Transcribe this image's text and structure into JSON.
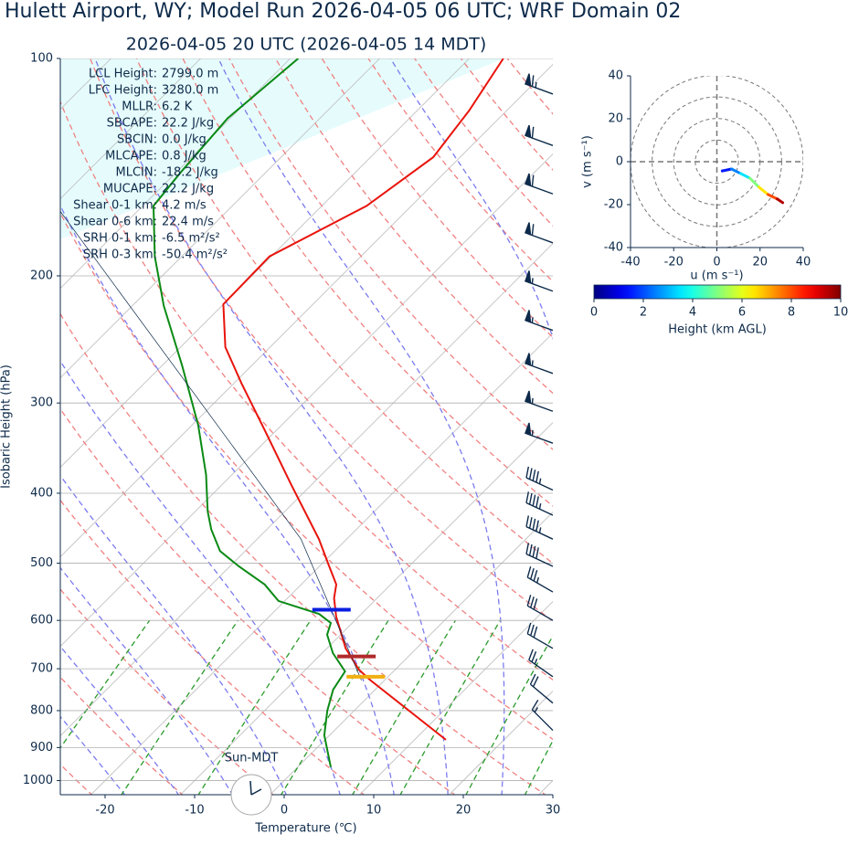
{
  "chart_data": [
    {
      "type": "skew-t",
      "title": "Hulett Airport, WY; Model Run 2026-04-05 06 UTC; WRF Domain 02",
      "subtitle": "2026-04-05 20 UTC  (2026-04-05 14 MDT)",
      "x_label": "Temperature (℃)",
      "y_label": "Isobaric Height (hPa)",
      "xlim": [
        -25,
        30
      ],
      "xticks": [
        -20,
        -10,
        0,
        10,
        20,
        30
      ],
      "ylim": [
        1046,
        100
      ],
      "yticks": [
        100,
        200,
        300,
        400,
        500,
        600,
        700,
        800,
        900,
        1000
      ],
      "log_y": true,
      "grid": true,
      "series": [
        {
          "name": "Temperature",
          "color": "#e8140c",
          "pressure": [
            878,
            726,
            702,
            656,
            593,
            559,
            535,
            501,
            463,
            389,
            326,
            282,
            251,
            219,
            188,
            160,
            137,
            118,
            100
          ],
          "values": [
            13.5,
            -1.6,
            -4.05,
            -7.9,
            -12.5,
            -14.8,
            -16.1,
            -19.3,
            -23.1,
            -32.3,
            -41.5,
            -49.1,
            -55.0,
            -60.0,
            -60.2,
            -55.0,
            -53.0,
            -54.2,
            -56.2
          ]
        },
        {
          "name": "Dewpoint",
          "color": "#0a8a14",
          "pressure": [
            958,
            865,
            800,
            748,
            706,
            666,
            628,
            605,
            588,
            564,
            535,
            505,
            481,
            449,
            424,
            377,
            322,
            266,
            220,
            188,
            160,
            144,
            121,
            100
          ],
          "values": [
            3.7,
            -0.6,
            -3.0,
            -4.7,
            -5.4,
            -8.8,
            -11.5,
            -12.4,
            -14.7,
            -20.7,
            -24.1,
            -29.0,
            -32.8,
            -36.2,
            -38.6,
            -42.9,
            -49.3,
            -57.8,
            -66.5,
            -73.0,
            -78.8,
            -79.5,
            -80.3,
            -79.1
          ]
        },
        {
          "name": "Parcel",
          "color": "#0d2a4a",
          "pressure": [
            726,
            463,
            162
          ],
          "values": [
            -2.6,
            -25.1,
            -88.9
          ]
        }
      ],
      "markers": [
        {
          "pressure": 580,
          "temp": -13.8,
          "color": "#0a1ee0"
        },
        {
          "pressure": 673,
          "temp": -5.8,
          "color": "#b02a2a"
        },
        {
          "pressure": 718,
          "temp": -2.5,
          "color": "#f0b010"
        }
      ],
      "winds": {
        "color": "#0d2a4a",
        "pressure": [
          112,
          132,
          154,
          180,
          210,
          238,
          273,
          308,
          341,
          396,
          429,
          463,
          505,
          548,
          600,
          656,
          718,
          781,
          852
        ],
        "speed": [
          65,
          60,
          60,
          60,
          55,
          55,
          55,
          55,
          55,
          45,
          45,
          45,
          40,
          35,
          30,
          30,
          25,
          20,
          15
        ],
        "direction": [
          290,
          290,
          290,
          290,
          290,
          290,
          290,
          290,
          290,
          295,
          295,
          295,
          295,
          300,
          300,
          300,
          305,
          310,
          315
        ]
      },
      "stats": [
        {
          "label": "LCL Height:",
          "value": "2799.0 m"
        },
        {
          "label": "LFC Height:",
          "value": "3280.0 m"
        },
        {
          "label": "MLLR:",
          "value": "6.2 K"
        },
        {
          "label": "SBCAPE:",
          "value": "22.2 J/kg"
        },
        {
          "label": "SBCIN:",
          "value": "0.0 J/kg"
        },
        {
          "label": "MLCAPE:",
          "value": "0.8 J/kg"
        },
        {
          "label": "MLCIN:",
          "value": "-18.2 J/kg"
        },
        {
          "label": "MUCAPE:",
          "value": "22.2 J/kg"
        },
        {
          "label": "Shear 0-1 km:",
          "value": "4.2 m/s"
        },
        {
          "label": "Shear 0-6 km:",
          "value": "22.4 m/s"
        },
        {
          "label": "SRH 0-1 km:",
          "value": "-6.5 m²/s²"
        },
        {
          "label": "SRH 0-3 km:",
          "value": "-50.4 m²/s²"
        }
      ],
      "clock_label": "Sun-MDT"
    },
    {
      "type": "hodograph",
      "x_label": "u (m s⁻¹)",
      "y_label": "v (m s⁻¹)",
      "xlim": [
        -40,
        40
      ],
      "xticks": [
        -40,
        -20,
        0,
        20,
        40
      ],
      "ylim": [
        -40,
        40
      ],
      "yticks": [
        -40,
        -20,
        0,
        20,
        40
      ],
      "rings": [
        10,
        20,
        30,
        40
      ],
      "u": [
        2.5,
        6.8,
        11,
        15.3,
        19.5,
        23.7,
        28,
        30.5
      ],
      "v": [
        -4.3,
        -3.4,
        -5.5,
        -7.7,
        -11.9,
        -15.3,
        -17.4,
        -19.1
      ],
      "height": [
        0.5,
        1.5,
        2.5,
        3.5,
        5,
        6.5,
        8,
        9.5
      ],
      "colorbar": {
        "label": "Height (km AGL)",
        "lim": [
          0,
          10
        ],
        "ticks": [
          0,
          2,
          4,
          6,
          8,
          10
        ],
        "colormap": "jet"
      }
    }
  ]
}
